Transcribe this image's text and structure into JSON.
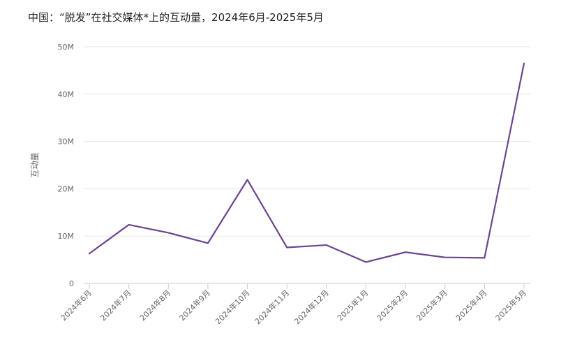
{
  "chart_data": {
    "type": "line",
    "title": "中国：“脱发”在社交媒体*上的互动量，2024年6月-2025年5月",
    "ylabel": "互动量",
    "xlabel": "",
    "categories": [
      "2024年6月",
      "2024年7月",
      "2024年8月",
      "2024年9月",
      "2024年10月",
      "2024年11月",
      "2024年12月",
      "2025年1月",
      "2025年2月",
      "2025年3月",
      "2025年4月",
      "2025年5月"
    ],
    "series": [
      {
        "values": [
          6300000,
          12400000,
          10700000,
          8500000,
          21900000,
          7600000,
          8100000,
          4500000,
          6600000,
          5500000,
          5400000,
          46500000
        ],
        "color": "#6b4591"
      }
    ],
    "yticks": [
      0,
      10000000,
      20000000,
      30000000,
      40000000,
      50000000
    ],
    "ytick_labels": [
      "0",
      "10M",
      "20M",
      "30M",
      "40M",
      "50M"
    ],
    "ylim": [
      0,
      50000000
    ],
    "grid": true,
    "legend": "none"
  }
}
